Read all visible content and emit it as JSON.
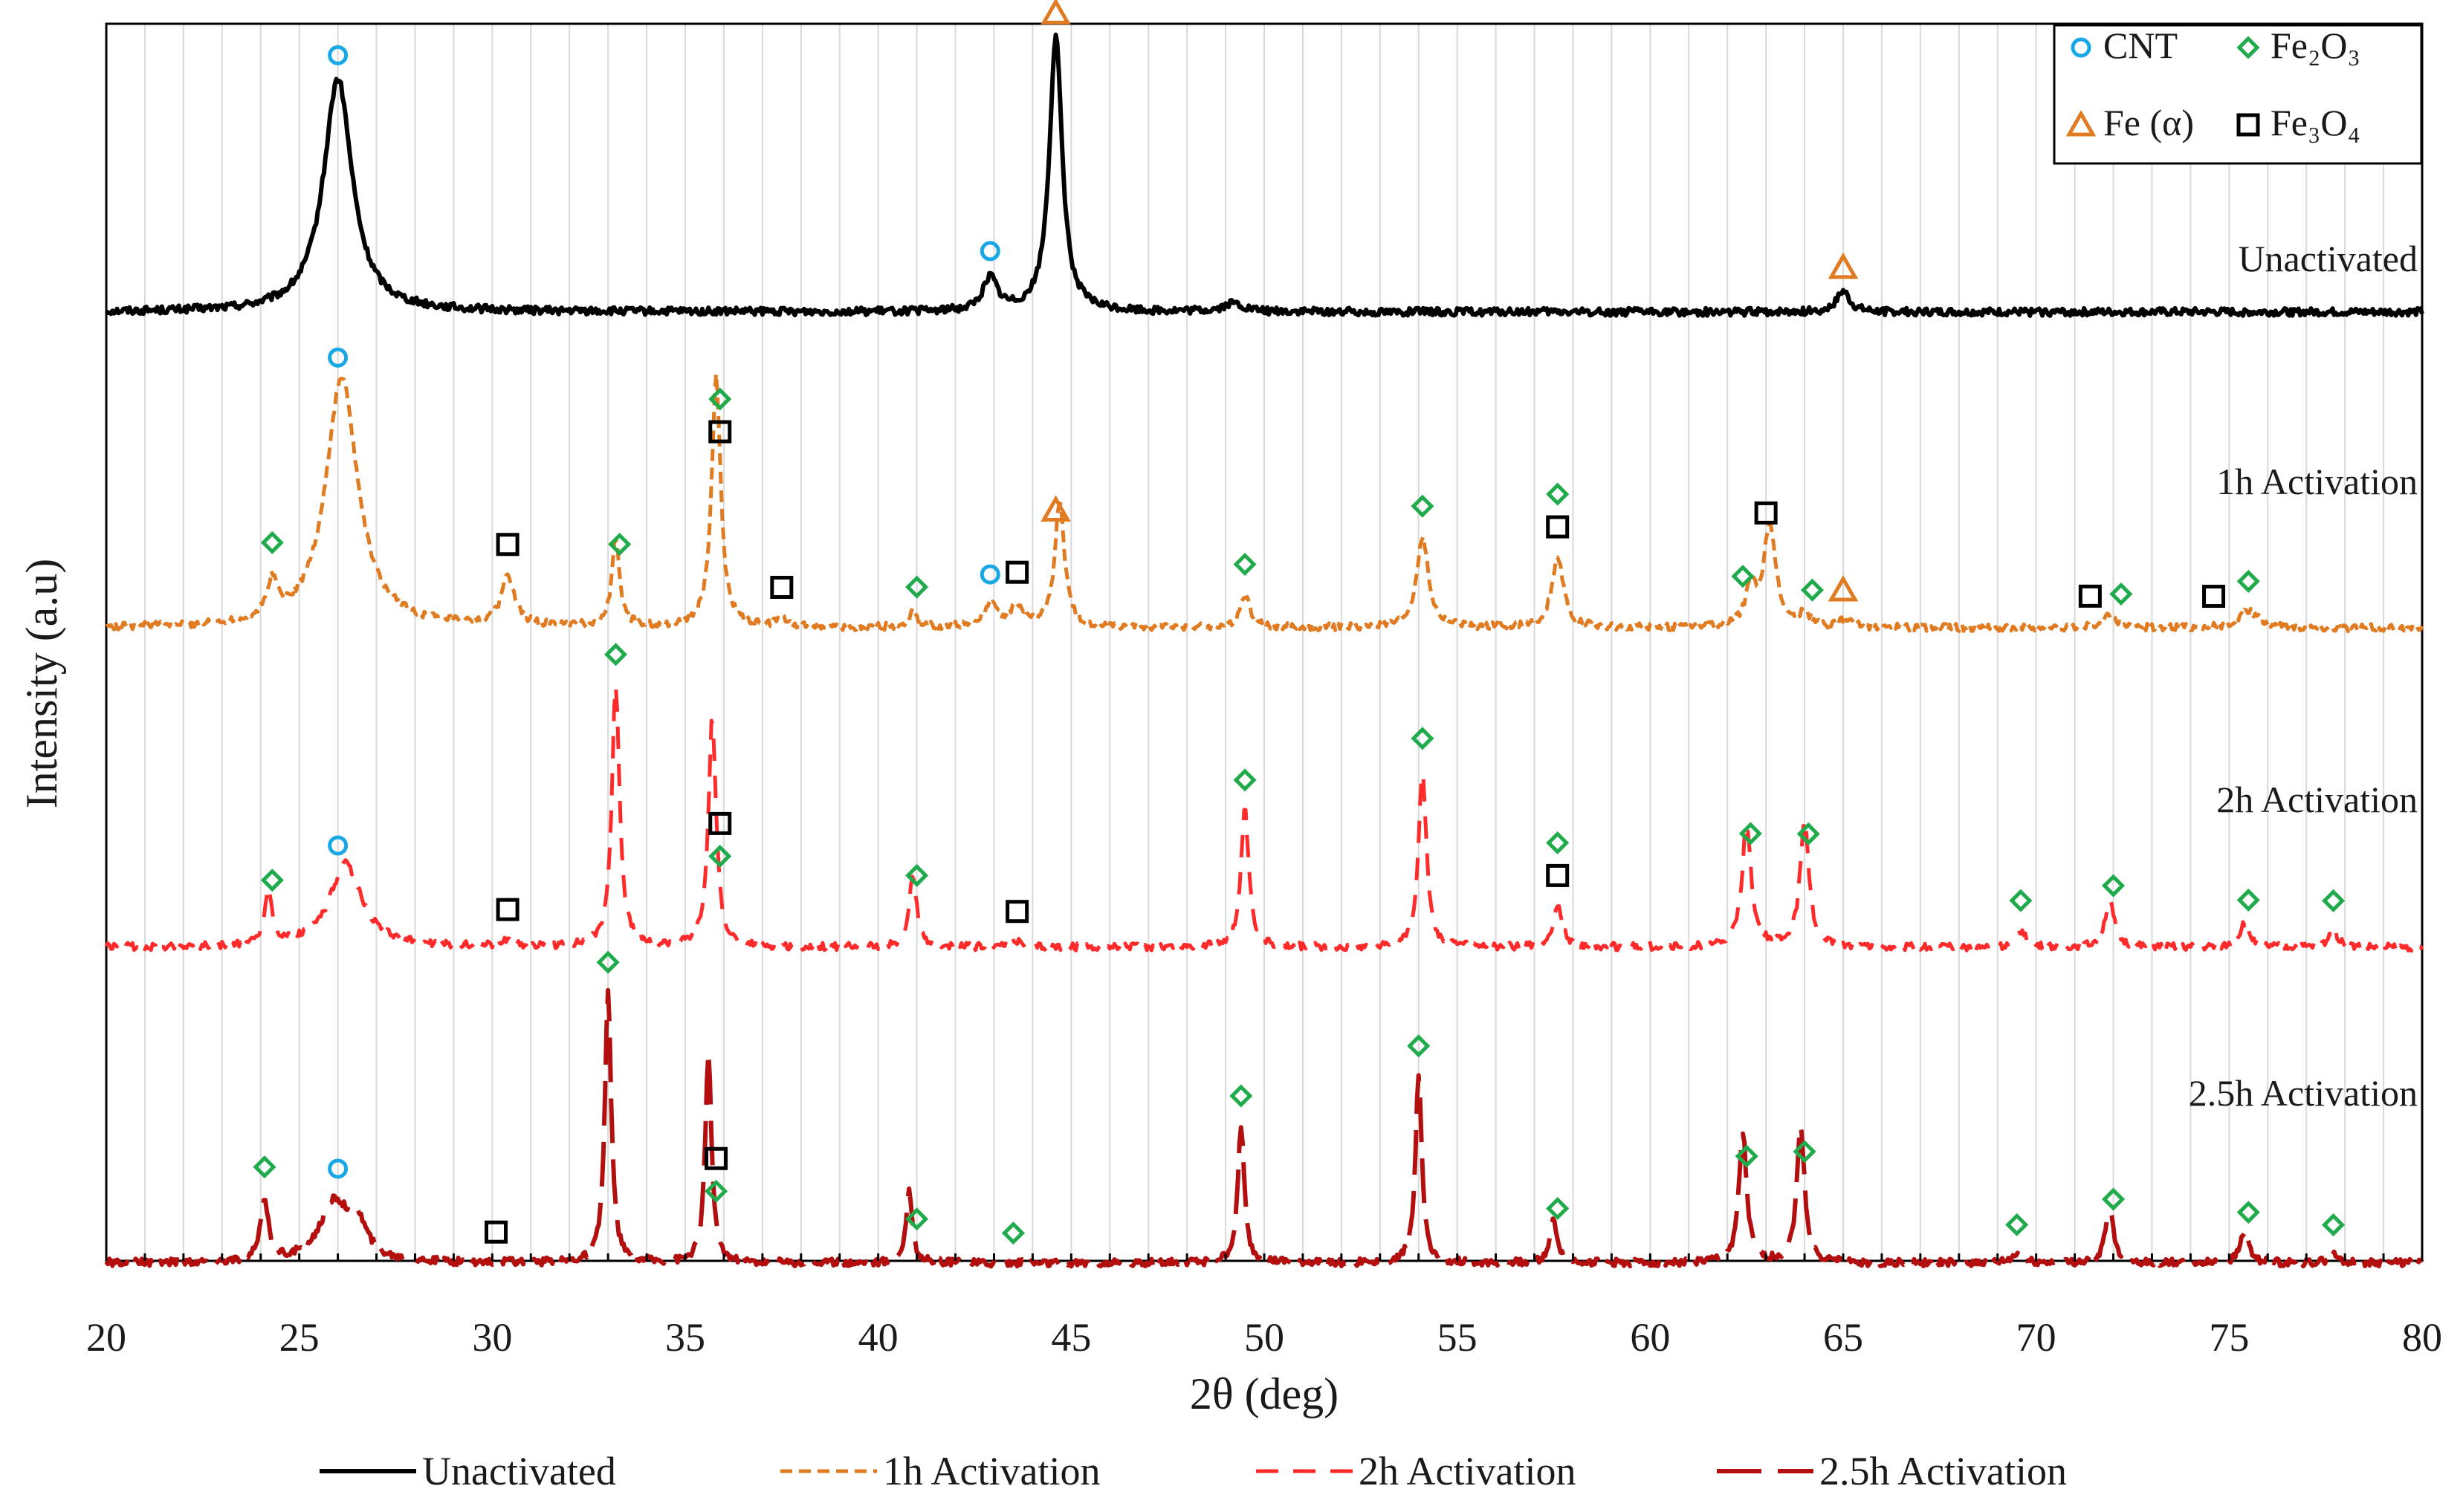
{
  "chart_data": {
    "type": "line",
    "title": "",
    "xlabel": "2θ (deg)",
    "ylabel": "Intensity (a.u)",
    "xlim": [
      20,
      80
    ],
    "xticks": [
      20,
      25,
      30,
      35,
      40,
      45,
      50,
      55,
      60,
      65,
      70,
      75,
      80
    ],
    "grid": "vertical minor gridlines every 1 deg",
    "series": [
      {
        "name": "Unactivated",
        "label": "Unactivated",
        "style": "solid",
        "color": "#000000",
        "baseline": 0.82,
        "peaks": [
          [
            26.0,
            0.56,
            0.45
          ],
          [
            42.9,
            0.08,
            0.22
          ],
          [
            44.6,
            0.66,
            0.2
          ],
          [
            49.2,
            0.02,
            0.3
          ],
          [
            65.0,
            0.05,
            0.2
          ]
        ]
      },
      {
        "name": "1h Activation",
        "label": "1h Activation",
        "style": "dotted-dash",
        "color": "#e07b22",
        "baseline": 0.0,
        "peaks": [
          [
            24.3,
            0.09,
            0.15
          ],
          [
            26.1,
            0.6,
            0.5
          ],
          [
            30.4,
            0.12,
            0.2
          ],
          [
            33.2,
            0.21,
            0.12
          ],
          [
            35.8,
            0.6,
            0.14
          ],
          [
            37.5,
            0.02,
            0.15
          ],
          [
            40.9,
            0.04,
            0.12
          ],
          [
            42.9,
            0.05,
            0.25
          ],
          [
            43.6,
            0.05,
            0.2
          ],
          [
            44.7,
            0.3,
            0.15
          ],
          [
            49.5,
            0.08,
            0.15
          ],
          [
            54.1,
            0.22,
            0.18
          ],
          [
            57.6,
            0.17,
            0.18
          ],
          [
            62.6,
            0.1,
            0.15
          ],
          [
            63.1,
            0.25,
            0.18
          ],
          [
            64.0,
            0.04,
            0.12
          ],
          [
            65.1,
            0.02,
            0.2
          ],
          [
            71.9,
            0.03,
            0.2
          ],
          [
            75.5,
            0.04,
            0.3
          ]
        ]
      },
      {
        "name": "2h Activation",
        "label": "2h Activation",
        "style": "dashed",
        "color": "#ff2a2a",
        "baseline": 0.0,
        "peaks": [
          [
            24.2,
            0.13,
            0.12
          ],
          [
            26.2,
            0.2,
            0.5
          ],
          [
            30.4,
            0.015,
            0.2
          ],
          [
            33.2,
            0.63,
            0.12
          ],
          [
            35.7,
            0.55,
            0.12
          ],
          [
            40.9,
            0.17,
            0.12
          ],
          [
            43.5,
            0.02,
            0.15
          ],
          [
            49.5,
            0.33,
            0.12
          ],
          [
            54.1,
            0.43,
            0.12
          ],
          [
            57.6,
            0.1,
            0.14
          ],
          [
            62.5,
            0.3,
            0.14
          ],
          [
            64.0,
            0.3,
            0.14
          ],
          [
            69.6,
            0.04,
            0.15
          ],
          [
            71.9,
            0.11,
            0.15
          ],
          [
            75.4,
            0.06,
            0.15
          ],
          [
            77.7,
            0.04,
            0.15
          ]
        ]
      },
      {
        "name": "2.5h Activation",
        "label": "2.5h Activation",
        "style": "long-dash",
        "color": "#b30f0f",
        "baseline": 0.0,
        "peaks": [
          [
            24.1,
            0.15,
            0.12
          ],
          [
            25.9,
            0.14,
            0.45
          ],
          [
            26.5,
            0.08,
            0.3
          ],
          [
            33.0,
            0.65,
            0.1
          ],
          [
            35.6,
            0.5,
            0.1
          ],
          [
            40.8,
            0.17,
            0.1
          ],
          [
            49.4,
            0.33,
            0.1
          ],
          [
            54.0,
            0.45,
            0.1
          ],
          [
            57.5,
            0.1,
            0.12
          ],
          [
            62.4,
            0.31,
            0.12
          ],
          [
            63.9,
            0.33,
            0.12
          ],
          [
            69.5,
            0.02,
            0.15
          ],
          [
            71.9,
            0.13,
            0.13
          ],
          [
            75.4,
            0.08,
            0.13
          ],
          [
            77.7,
            0.02,
            0.15
          ]
        ]
      }
    ],
    "curve_labels": [
      {
        "text": "Unactivated",
        "series": 0
      },
      {
        "text": "1h Activation",
        "series": 1
      },
      {
        "text": "2h Activation",
        "series": 2
      },
      {
        "text": "2.5h Activation",
        "series": 3
      }
    ],
    "phase_legend": [
      {
        "symbol": "circle",
        "label": "CNT",
        "color": "#1aa7e6"
      },
      {
        "symbol": "diamond",
        "label": "Fe₂O₃",
        "color": "#1faa4b"
      },
      {
        "symbol": "triangle",
        "label": "Fe (α)",
        "color": "#e07b22"
      },
      {
        "symbol": "square",
        "label": "Fe₃O₄",
        "color": "#000000"
      }
    ],
    "phase_markers": [
      {
        "series": 0,
        "phase": "circle",
        "x": 26.0
      },
      {
        "series": 0,
        "phase": "triangle",
        "x": 44.6
      },
      {
        "series": 0,
        "phase": "circle",
        "x": 42.9
      },
      {
        "series": 0,
        "phase": "triangle",
        "x": 65.0
      },
      {
        "series": 1,
        "phase": "circle",
        "x": 26.0
      },
      {
        "series": 1,
        "phase": "square",
        "x": 35.9
      },
      {
        "series": 1,
        "phase": "diamond",
        "x": 35.9
      },
      {
        "series": 1,
        "phase": "diamond",
        "x": 24.3
      },
      {
        "series": 1,
        "phase": "square",
        "x": 30.4
      },
      {
        "series": 1,
        "phase": "diamond",
        "x": 33.3
      },
      {
        "series": 1,
        "phase": "square",
        "x": 37.5
      },
      {
        "series": 1,
        "phase": "diamond",
        "x": 41.0
      },
      {
        "series": 1,
        "phase": "circle",
        "x": 42.9
      },
      {
        "series": 1,
        "phase": "square",
        "x": 43.6
      },
      {
        "series": 1,
        "phase": "triangle",
        "x": 44.6
      },
      {
        "series": 1,
        "phase": "diamond",
        "x": 49.5
      },
      {
        "series": 1,
        "phase": "diamond",
        "x": 54.1
      },
      {
        "series": 1,
        "phase": "square",
        "x": 57.6
      },
      {
        "series": 1,
        "phase": "diamond",
        "x": 57.6
      },
      {
        "series": 1,
        "phase": "diamond",
        "x": 62.4
      },
      {
        "series": 1,
        "phase": "square",
        "x": 63.0
      },
      {
        "series": 1,
        "phase": "diamond",
        "x": 64.2
      },
      {
        "series": 1,
        "phase": "triangle",
        "x": 65.0
      },
      {
        "series": 1,
        "phase": "square",
        "x": 71.4
      },
      {
        "series": 1,
        "phase": "diamond",
        "x": 72.2
      },
      {
        "series": 1,
        "phase": "square",
        "x": 74.6
      },
      {
        "series": 1,
        "phase": "diamond",
        "x": 75.5
      },
      {
        "series": 2,
        "phase": "diamond",
        "x": 33.2
      },
      {
        "series": 2,
        "phase": "diamond",
        "x": 35.9
      },
      {
        "series": 2,
        "phase": "square",
        "x": 35.9
      },
      {
        "series": 2,
        "phase": "diamond",
        "x": 24.3
      },
      {
        "series": 2,
        "phase": "circle",
        "x": 26.0
      },
      {
        "series": 2,
        "phase": "square",
        "x": 30.4
      },
      {
        "series": 2,
        "phase": "diamond",
        "x": 41.0
      },
      {
        "series": 2,
        "phase": "square",
        "x": 43.6
      },
      {
        "series": 2,
        "phase": "diamond",
        "x": 49.5
      },
      {
        "series": 2,
        "phase": "diamond",
        "x": 54.1
      },
      {
        "series": 2,
        "phase": "square",
        "x": 57.6
      },
      {
        "series": 2,
        "phase": "diamond",
        "x": 57.6
      },
      {
        "series": 2,
        "phase": "diamond",
        "x": 62.6
      },
      {
        "series": 2,
        "phase": "diamond",
        "x": 64.1
      },
      {
        "series": 2,
        "phase": "diamond",
        "x": 69.6
      },
      {
        "series": 2,
        "phase": "diamond",
        "x": 72.0
      },
      {
        "series": 2,
        "phase": "diamond",
        "x": 75.5
      },
      {
        "series": 2,
        "phase": "diamond",
        "x": 77.7
      },
      {
        "series": 3,
        "phase": "diamond",
        "x": 33.0
      },
      {
        "series": 3,
        "phase": "diamond",
        "x": 35.8
      },
      {
        "series": 3,
        "phase": "square",
        "x": 35.8
      },
      {
        "series": 3,
        "phase": "diamond",
        "x": 24.1
      },
      {
        "series": 3,
        "phase": "circle",
        "x": 26.0
      },
      {
        "series": 3,
        "phase": "square",
        "x": 30.1
      },
      {
        "series": 3,
        "phase": "diamond",
        "x": 41.0
      },
      {
        "series": 3,
        "phase": "diamond",
        "x": 43.5
      },
      {
        "series": 3,
        "phase": "diamond",
        "x": 49.4
      },
      {
        "series": 3,
        "phase": "diamond",
        "x": 54.0
      },
      {
        "series": 3,
        "phase": "diamond",
        "x": 57.6
      },
      {
        "series": 3,
        "phase": "diamond",
        "x": 62.5
      },
      {
        "series": 3,
        "phase": "diamond",
        "x": 64.0
      },
      {
        "series": 3,
        "phase": "diamond",
        "x": 69.5
      },
      {
        "series": 3,
        "phase": "diamond",
        "x": 72.0
      },
      {
        "series": 3,
        "phase": "diamond",
        "x": 75.5
      },
      {
        "series": 3,
        "phase": "diamond",
        "x": 77.7
      }
    ]
  }
}
